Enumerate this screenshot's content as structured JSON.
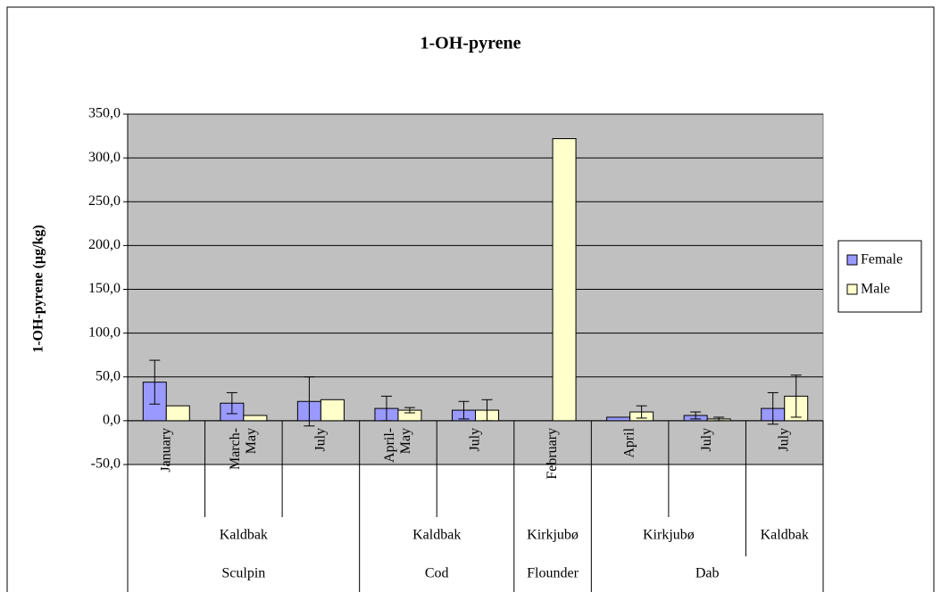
{
  "chart_data": {
    "type": "bar",
    "title": "1-OH-pyrene",
    "y_label": "1-OH-pyrene (µg/kg)",
    "category_groups": [
      {
        "name": "Sculpin",
        "groups": [
          {
            "name": "Kaldbak",
            "categories": [
              "January",
              "March-\nMay",
              "July"
            ]
          }
        ]
      },
      {
        "name": "Cod",
        "groups": [
          {
            "name": "Kaldbak",
            "categories": [
              "April-\nMay",
              "July"
            ]
          }
        ]
      },
      {
        "name": "Flounder",
        "groups": [
          {
            "name": "Kirkjubø",
            "categories": [
              "February"
            ]
          }
        ]
      },
      {
        "name": "Dab",
        "groups": [
          {
            "name": "Kirkjubø",
            "categories": [
              "April",
              "July"
            ]
          },
          {
            "name": "Kaldbak",
            "categories": [
              "July"
            ]
          }
        ]
      }
    ],
    "series": [
      {
        "name": "Female",
        "color": "#9999ff",
        "values": [
          44,
          20,
          22,
          14,
          12,
          null,
          4,
          6,
          14
        ],
        "errors": [
          25,
          12,
          28,
          14,
          10,
          null,
          null,
          4,
          18
        ]
      },
      {
        "name": "Male",
        "color": "#ffffcc",
        "values": [
          17,
          6,
          24,
          12,
          12,
          322,
          10,
          2,
          28
        ],
        "errors": [
          null,
          null,
          null,
          3,
          12,
          null,
          7,
          2,
          24
        ]
      }
    ],
    "ylim": [
      -50,
      350
    ],
    "yticks": [
      {
        "value": -50,
        "label": "-50,0"
      },
      {
        "value": 0,
        "label": "0,0"
      },
      {
        "value": 50,
        "label": "50,0"
      },
      {
        "value": 100,
        "label": "100,0"
      },
      {
        "value": 150,
        "label": "150,0"
      },
      {
        "value": 200,
        "label": "200,0"
      },
      {
        "value": 250,
        "label": "250,0"
      },
      {
        "value": 300,
        "label": "300,0"
      },
      {
        "value": 350,
        "label": "350,0"
      }
    ],
    "grid": true,
    "legend": "right"
  }
}
